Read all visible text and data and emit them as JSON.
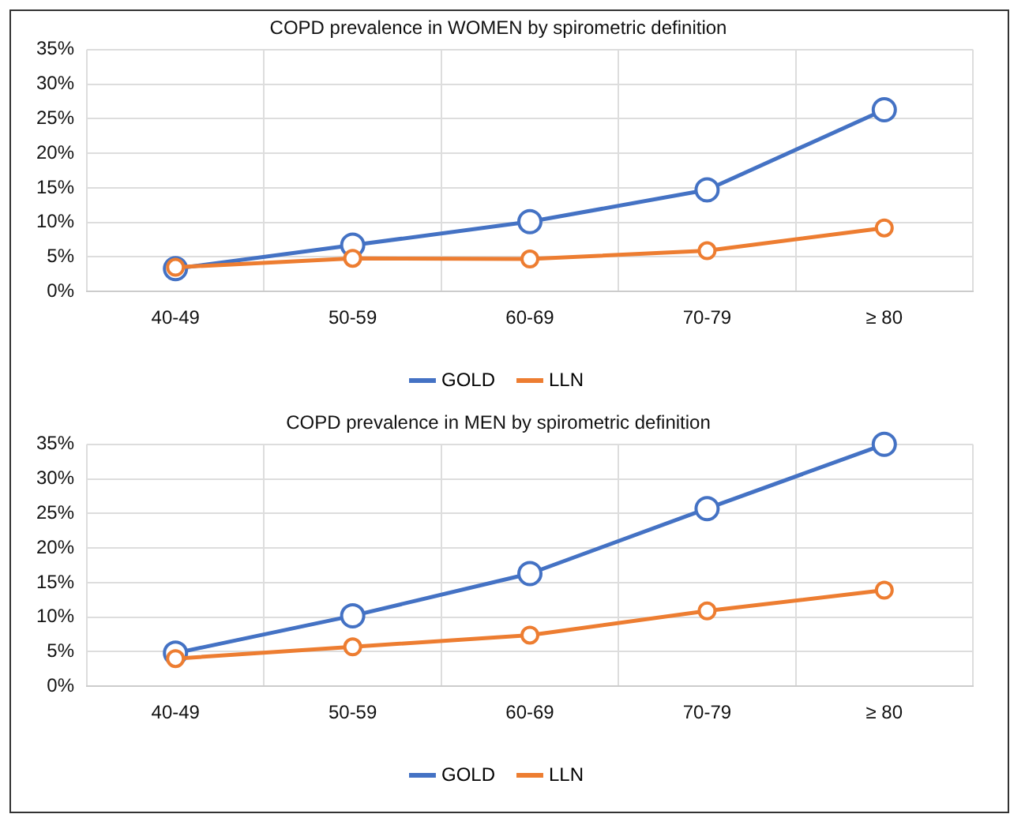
{
  "chart_data": [
    {
      "type": "line",
      "title": "COPD prevalence in WOMEN by spirometric definition",
      "categories": [
        "40-49",
        "50-59",
        "60-69",
        "70-79",
        "≥ 80"
      ],
      "series": [
        {
          "name": "GOLD",
          "color": "#4472c4",
          "values": [
            3.3,
            6.7,
            10.1,
            14.7,
            26.3
          ]
        },
        {
          "name": "LLN",
          "color": "#ed7d31",
          "values": [
            3.5,
            4.8,
            4.7,
            5.9,
            9.2
          ]
        }
      ],
      "ylim": [
        0,
        35
      ],
      "yticks": [
        {
          "value": 0,
          "label": "0%"
        },
        {
          "value": 5,
          "label": "5%"
        },
        {
          "value": 10,
          "label": "10%"
        },
        {
          "value": 15,
          "label": "15%"
        },
        {
          "value": 20,
          "label": "20%"
        },
        {
          "value": 25,
          "label": "25%"
        },
        {
          "value": 30,
          "label": "30%"
        },
        {
          "value": 35,
          "label": "35%"
        }
      ],
      "grid": true,
      "legend": "bottom",
      "marker": "circle",
      "line_style": "solid"
    },
    {
      "type": "line",
      "title": "COPD prevalence in MEN by spirometric definition",
      "categories": [
        "40-49",
        "50-59",
        "60-69",
        "70-79",
        "≥ 80"
      ],
      "series": [
        {
          "name": "GOLD",
          "color": "#4472c4",
          "values": [
            4.8,
            10.2,
            16.3,
            25.7,
            35.0
          ]
        },
        {
          "name": "LLN",
          "color": "#ed7d31",
          "values": [
            4.0,
            5.7,
            7.4,
            10.9,
            13.9
          ]
        }
      ],
      "ylim": [
        0,
        35
      ],
      "yticks": [
        {
          "value": 0,
          "label": "0%"
        },
        {
          "value": 5,
          "label": "5%"
        },
        {
          "value": 10,
          "label": "10%"
        },
        {
          "value": 15,
          "label": "15%"
        },
        {
          "value": 20,
          "label": "20%"
        },
        {
          "value": 25,
          "label": "25%"
        },
        {
          "value": 30,
          "label": "30%"
        },
        {
          "value": 35,
          "label": "35%"
        }
      ],
      "grid": true,
      "legend": "bottom",
      "marker": "circle",
      "line_style": "solid"
    }
  ]
}
